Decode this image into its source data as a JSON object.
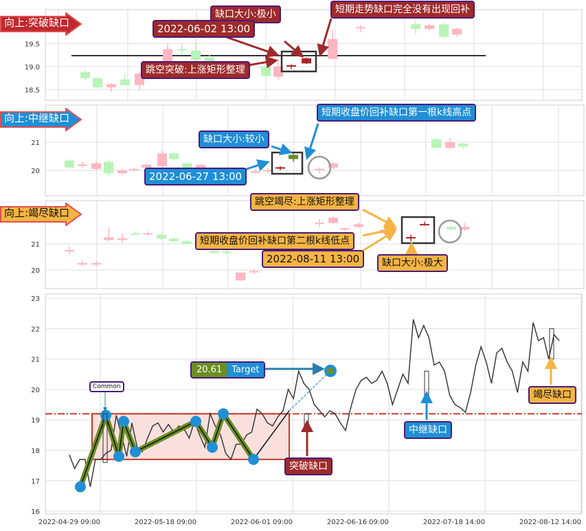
{
  "chart_data": [
    {
      "type": "candlestick",
      "title": "向上:突破缺口",
      "yticks": [
        "19.5",
        "19.0",
        "18.5"
      ],
      "colors": {
        "up": "#ffb6c1",
        "down": "#b6f5b6",
        "gap": "#a82424"
      },
      "candles": [
        {
          "o": 18.88,
          "h": 18.92,
          "l": 18.7,
          "c": 18.75
        },
        {
          "o": 18.75,
          "h": 18.78,
          "l": 18.52,
          "c": 18.55
        },
        {
          "o": 18.55,
          "h": 18.64,
          "l": 18.45,
          "c": 18.62
        },
        {
          "o": 18.72,
          "h": 18.85,
          "l": 18.58,
          "c": 18.6
        },
        {
          "o": 18.6,
          "h": 18.9,
          "l": 18.48,
          "c": 18.85
        },
        {
          "o": 19.05,
          "h": 19.5,
          "l": 19.0,
          "c": 19.38
        },
        {
          "o": 19.38,
          "h": 19.5,
          "l": 19.25,
          "c": 19.37
        },
        {
          "o": 19.35,
          "h": 19.55,
          "l": 19.1,
          "c": 19.15
        },
        {
          "o": 19.2,
          "h": 19.25,
          "l": 19.0,
          "c": 19.05
        },
        {
          "o": 19.0,
          "h": 19.02,
          "l": 18.78,
          "c": 18.8
        },
        {
          "o": 18.78,
          "h": 19.15,
          "l": 18.72,
          "c": 19.0
        },
        {
          "o": 19.02,
          "h": 19.05,
          "l": 18.95,
          "c": 19.03,
          "gap": true
        },
        {
          "o": 19.07,
          "h": 19.2,
          "l": 19.06,
          "c": 19.18,
          "gap": true
        },
        {
          "o": 19.17,
          "h": 19.8,
          "l": 19.15,
          "c": 19.6
        },
        {
          "o": 19.85,
          "h": 19.9,
          "l": 19.75,
          "c": 19.86
        },
        {
          "o": 19.92,
          "h": 20.0,
          "l": 19.7,
          "c": 19.82
        },
        {
          "o": 19.82,
          "h": 19.93,
          "l": 19.78,
          "c": 19.9
        },
        {
          "o": 19.92,
          "h": 19.95,
          "l": 19.62,
          "c": 19.65
        },
        {
          "o": 19.7,
          "h": 19.85,
          "l": 19.65,
          "c": 19.82
        }
      ],
      "level": 19.2,
      "annotations": {
        "size": "缺口大小:极小",
        "note": "短期走势缺口完全没有出现回补",
        "date": "2022-06-02 13:00",
        "pattern": "跳空突破:上涨矩形整理"
      }
    },
    {
      "type": "candlestick",
      "title": "向上:中继缺口",
      "yticks": [
        "21",
        "20"
      ],
      "colors": {
        "up": "#ffb6c1",
        "down": "#b6f5b6",
        "gap_up": "#a82424",
        "gap_down": "#6b8e23"
      },
      "candles": [
        {
          "o": 20.35,
          "h": 20.4,
          "l": 20.05,
          "c": 20.1
        },
        {
          "o": 20.2,
          "h": 20.3,
          "l": 20.1,
          "c": 20.21
        },
        {
          "o": 20.05,
          "h": 20.3,
          "l": 20.0,
          "c": 20.25
        },
        {
          "o": 20.3,
          "h": 20.4,
          "l": 19.8,
          "c": 19.9
        },
        {
          "o": 19.9,
          "h": 20.05,
          "l": 19.85,
          "c": 20.0
        },
        {
          "o": 20.0,
          "h": 20.1,
          "l": 19.97,
          "c": 20.05
        },
        {
          "o": 20.1,
          "h": 20.25,
          "l": 20.05,
          "c": 20.2
        },
        {
          "o": 20.15,
          "h": 20.7,
          "l": 20.1,
          "c": 20.6
        },
        {
          "o": 20.6,
          "h": 20.65,
          "l": 20.35,
          "c": 20.4
        },
        {
          "o": 20.25,
          "h": 20.3,
          "l": 20.0,
          "c": 20.05
        },
        {
          "o": 20.05,
          "h": 20.22,
          "l": 20.0,
          "c": 20.2
        },
        {
          "o": 19.95,
          "h": 20.05,
          "l": 19.9,
          "c": 19.96
        },
        {
          "o": 20.0,
          "h": 20.1,
          "l": 19.9,
          "c": 20.01
        },
        {
          "o": 20.1,
          "h": 20.15,
          "l": 20.0,
          "c": 20.11,
          "gap": true
        },
        {
          "o": 20.55,
          "h": 20.6,
          "l": 20.3,
          "c": 20.4,
          "gap": true
        },
        {
          "o": 20.0,
          "h": 20.1,
          "l": 19.9,
          "c": 20.05
        },
        {
          "o": 20.1,
          "h": 20.3,
          "l": 20.05,
          "c": 20.25
        },
        {
          "o": 21.1,
          "h": 21.15,
          "l": 20.8,
          "c": 20.8
        },
        {
          "o": 20.8,
          "h": 21.15,
          "l": 20.75,
          "c": 21.0
        },
        {
          "o": 20.95,
          "h": 20.98,
          "l": 20.75,
          "c": 20.85
        }
      ],
      "annotations": {
        "size": "缺口大小:较小",
        "note": "短期收盘价回补缺口第一根k线高点",
        "date": "2022-06-27 13:00"
      }
    },
    {
      "type": "candlestick",
      "title": "向上:竭尽缺口",
      "yticks": [
        "21",
        "20"
      ],
      "colors": {
        "up": "#ffb6c1",
        "down": "#b6f5b6",
        "gap": "#a82424"
      },
      "candles": [
        {
          "o": 20.75,
          "h": 20.9,
          "l": 20.6,
          "c": 20.76
        },
        {
          "o": 20.25,
          "h": 20.35,
          "l": 20.15,
          "c": 20.26
        },
        {
          "o": 20.25,
          "h": 20.35,
          "l": 20.15,
          "c": 20.26
        },
        {
          "o": 21.15,
          "h": 21.6,
          "l": 21.1,
          "c": 21.25
        },
        {
          "o": 21.2,
          "h": 21.4,
          "l": 21.05,
          "c": 21.21
        },
        {
          "o": 21.4,
          "h": 21.48,
          "l": 21.35,
          "c": 21.39
        },
        {
          "o": 21.4,
          "h": 21.48,
          "l": 21.3,
          "c": 21.41
        },
        {
          "o": 21.35,
          "h": 21.4,
          "l": 21.15,
          "c": 21.2
        },
        {
          "o": 21.2,
          "h": 21.25,
          "l": 21.08,
          "c": 21.1
        },
        {
          "o": 21.1,
          "h": 21.15,
          "l": 20.98,
          "c": 21.0
        },
        {
          "o": 20.72,
          "h": 20.75,
          "l": 20.62,
          "c": 20.65
        },
        {
          "o": 20.7,
          "h": 20.75,
          "l": 20.6,
          "c": 20.69
        },
        {
          "o": 19.6,
          "h": 19.9,
          "l": 19.58,
          "c": 19.9
        },
        {
          "o": 19.95,
          "h": 20.05,
          "l": 19.85,
          "c": 19.96
        },
        {
          "o": 21.8,
          "h": 21.95,
          "l": 21.65,
          "c": 21.81
        },
        {
          "o": 21.8,
          "h": 22.05,
          "l": 21.75,
          "c": 22.0
        },
        {
          "o": 21.55,
          "h": 21.62,
          "l": 21.5,
          "c": 21.6
        },
        {
          "o": 21.65,
          "h": 21.82,
          "l": 21.6,
          "c": 21.75
        },
        {
          "o": 21.4,
          "h": 21.6,
          "l": 21.35,
          "c": 21.55
        },
        {
          "o": 21.25,
          "h": 21.35,
          "l": 21.1,
          "c": 21.26,
          "gap": true
        },
        {
          "o": 21.75,
          "h": 21.85,
          "l": 21.7,
          "c": 21.76,
          "gap": true
        },
        {
          "o": 21.65,
          "h": 21.7,
          "l": 21.5,
          "c": 21.55
        },
        {
          "o": 21.55,
          "h": 21.8,
          "l": 21.5,
          "c": 21.65
        }
      ],
      "annotations": {
        "pattern": "跳空竭尽:上涨矩形整理",
        "note": "短期收盘价回补缺口第二根k线低点",
        "date": "2022-08-11 13:00",
        "size": "缺口大小:极大"
      }
    },
    {
      "type": "line",
      "yticks": [
        "23",
        "22",
        "21",
        "20",
        "19",
        "18",
        "17",
        "16"
      ],
      "ylim": [
        16,
        23
      ],
      "xticks": [
        "2022-04-29 09:00",
        "2022-05-18 09:00",
        "2022-06-01 09:00",
        "2022-06-16 09:00",
        "2022-07-18 14:00",
        "2022-08-12 14:00"
      ],
      "values": [
        17.85,
        17.4,
        17.7,
        17.7,
        16.8,
        17.7,
        17.7,
        17.9,
        18.0,
        19.15,
        18.5,
        17.8,
        18.9,
        18.1,
        17.95,
        18.4,
        18.8,
        18.9,
        18.6,
        18.85,
        18.6,
        18.8,
        18.7,
        18.4,
        18.95,
        18.5,
        18.1,
        19.2,
        18.8,
        18.5,
        17.9,
        17.7,
        18.2,
        18.2,
        18.5,
        18.6,
        19.35,
        19.2,
        18.9,
        18.8,
        19.1,
        19.3,
        20.0,
        19.7,
        20.6,
        20.2,
        20.0,
        19.5,
        19.3,
        19.1,
        19.3,
        19.2,
        18.9,
        18.65,
        19.4,
        20.0,
        20.3,
        20.4,
        20.2,
        20.3,
        20.6,
        20.2,
        19.5,
        20.0,
        20.5,
        20.2,
        22.3,
        21.7,
        22.1,
        21.7,
        20.8,
        20.9,
        20.6,
        19.8,
        19.5,
        19.4,
        19.25,
        19.9,
        20.8,
        21.4,
        20.9,
        20.2,
        21.2,
        21.35,
        20.9,
        20.6,
        19.9,
        20.9,
        20.6,
        22.2,
        21.6,
        21.7,
        21.0,
        21.8,
        21.6
      ],
      "pattern_points": [
        16.8,
        19.15,
        17.8,
        18.95,
        17.95,
        18.95,
        18.1,
        19.2,
        17.7
      ],
      "rectangle": {
        "low": 17.7,
        "high": 19.2
      },
      "breakout_level": 19.2,
      "target": {
        "value": "20.61",
        "label": "Target"
      },
      "annotations": {
        "common": "Common",
        "breakout": "突破缺口",
        "runaway": "中继缺口",
        "exhaustion": "竭尽缺口"
      },
      "colors": {
        "line": "#3a3a3a",
        "pattern": "#6b8e23",
        "pivot": "#1f8fd6",
        "level": "#c0392b",
        "rect_fill": "#f9e0dc"
      }
    }
  ]
}
